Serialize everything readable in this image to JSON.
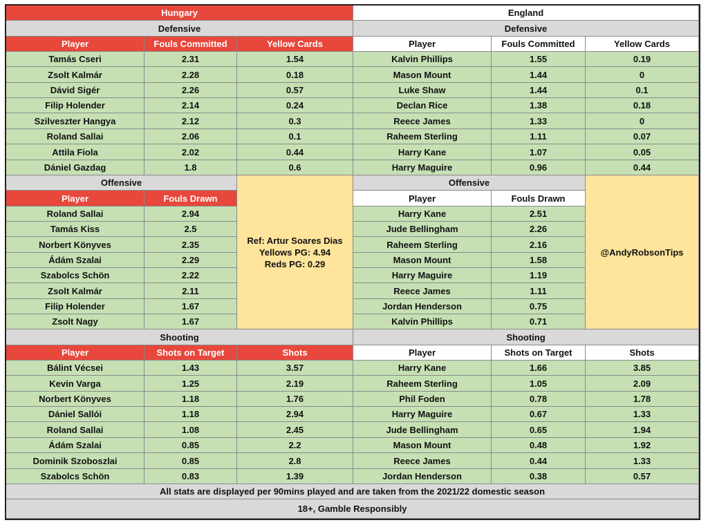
{
  "hungary": {
    "team": "Hungary",
    "defensive": {
      "title": "Defensive",
      "headers": [
        "Player",
        "Fouls Committed",
        "Yellow Cards"
      ],
      "rows": [
        [
          "Tamás Cseri",
          "2.31",
          "1.54"
        ],
        [
          "Zsolt Kalmár",
          "2.28",
          "0.18"
        ],
        [
          "Dávid Sigér",
          "2.26",
          "0.57"
        ],
        [
          "Filip Holender",
          "2.14",
          "0.24"
        ],
        [
          "Szilveszter Hangya",
          "2.12",
          "0.3"
        ],
        [
          "Roland Sallai",
          "2.06",
          "0.1"
        ],
        [
          "Attila Fiola",
          "2.02",
          "0.44"
        ],
        [
          "Dániel Gazdag",
          "1.8",
          "0.6"
        ]
      ]
    },
    "offensive": {
      "title": "Offensive",
      "headers": [
        "Player",
        "Fouls Drawn"
      ],
      "rows": [
        [
          "Roland Sallai",
          "2.94"
        ],
        [
          "Tamás Kiss",
          "2.5"
        ],
        [
          "Norbert Könyves",
          "2.35"
        ],
        [
          "Ádám Szalai",
          "2.29"
        ],
        [
          "Szabolcs Schön",
          "2.22"
        ],
        [
          "Zsolt Kalmár",
          "2.11"
        ],
        [
          "Filip Holender",
          "1.67"
        ],
        [
          "Zsolt Nagy",
          "1.67"
        ]
      ]
    },
    "shooting": {
      "title": "Shooting",
      "headers": [
        "Player",
        "Shots on Target",
        "Shots"
      ],
      "rows": [
        [
          "Bálint Vécsei",
          "1.43",
          "3.57"
        ],
        [
          "Kevin Varga",
          "1.25",
          "2.19"
        ],
        [
          "Norbert Könyves",
          "1.18",
          "1.76"
        ],
        [
          "Dániel Sallói",
          "1.18",
          "2.94"
        ],
        [
          "Roland Sallai",
          "1.08",
          "2.45"
        ],
        [
          "Ádám Szalai",
          "0.85",
          "2.2"
        ],
        [
          "Dominik Szoboszlai",
          "0.85",
          "2.8"
        ],
        [
          "Szabolcs Schön",
          "0.83",
          "1.39"
        ]
      ]
    }
  },
  "england": {
    "team": "England",
    "defensive": {
      "title": "Defensive",
      "headers": [
        "Player",
        "Fouls Committed",
        "Yellow Cards"
      ],
      "rows": [
        [
          "Kalvin Phillips",
          "1.55",
          "0.19"
        ],
        [
          "Mason Mount",
          "1.44",
          "0"
        ],
        [
          "Luke Shaw",
          "1.44",
          "0.1"
        ],
        [
          "Declan Rice",
          "1.38",
          "0.18"
        ],
        [
          "Reece James",
          "1.33",
          "0"
        ],
        [
          "Raheem Sterling",
          "1.11",
          "0.07"
        ],
        [
          "Harry Kane",
          "1.07",
          "0.05"
        ],
        [
          "Harry Maguire",
          "0.96",
          "0.44"
        ]
      ]
    },
    "offensive": {
      "title": "Offensive",
      "headers": [
        "Player",
        "Fouls Drawn"
      ],
      "rows": [
        [
          "Harry Kane",
          "2.51"
        ],
        [
          "Jude Bellingham",
          "2.26"
        ],
        [
          "Raheem Sterling",
          "2.16"
        ],
        [
          "Mason Mount",
          "1.58"
        ],
        [
          "Harry Maguire",
          "1.19"
        ],
        [
          "Reece James",
          "1.11"
        ],
        [
          "Jordan Henderson",
          "0.75"
        ],
        [
          "Kalvin Phillips",
          "0.71"
        ]
      ]
    },
    "shooting": {
      "title": "Shooting",
      "headers": [
        "Player",
        "Shots on Target",
        "Shots"
      ],
      "rows": [
        [
          "Harry Kane",
          "1.66",
          "3.85"
        ],
        [
          "Raheem Sterling",
          "1.05",
          "2.09"
        ],
        [
          "Phil Foden",
          "0.78",
          "1.78"
        ],
        [
          "Harry Maguire",
          "0.67",
          "1.33"
        ],
        [
          "Jude Bellingham",
          "0.65",
          "1.94"
        ],
        [
          "Mason Mount",
          "0.48",
          "1.92"
        ],
        [
          "Reece James",
          "0.44",
          "1.33"
        ],
        [
          "Jordan Henderson",
          "0.38",
          "0.57"
        ]
      ]
    }
  },
  "referee": {
    "line1": "Ref: Artur Soares Dias",
    "line2": "Yellows PG: 4.94",
    "line3": "Reds PG: 0.29"
  },
  "handle": "@AndyRobsonTips",
  "footer": {
    "note": "All stats are displayed per 90mins played and are taken from the 2021/22 domestic season",
    "disclaimer": "18+, Gamble Responsibly"
  },
  "colors": {
    "hungary_header": "#e8473b",
    "section_header": "#d9d9d9",
    "data_cell": "#c6e0b4",
    "info_box": "#ffe49c"
  }
}
